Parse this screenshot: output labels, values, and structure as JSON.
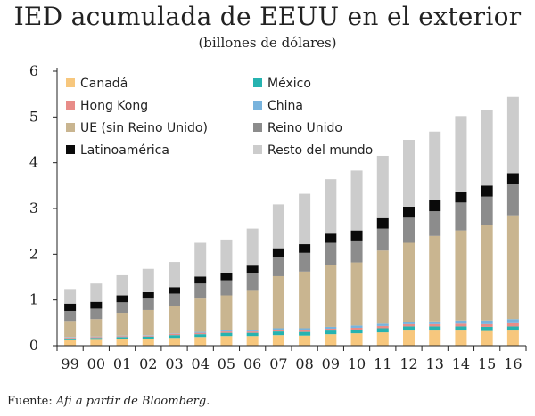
{
  "title": "IED acumulada de EEUU en el exterior",
  "subtitle": "(billones de dólares)",
  "source": {
    "prefix": "Fuente: ",
    "text": "Afi a partir de Bloomberg."
  },
  "chart_data": {
    "type": "bar",
    "stacked": true,
    "categories": [
      "99",
      "00",
      "01",
      "02",
      "03",
      "04",
      "05",
      "06",
      "07",
      "08",
      "09",
      "10",
      "11",
      "12",
      "13",
      "14",
      "15",
      "16"
    ],
    "ylim": [
      0,
      6
    ],
    "yticks": [
      0,
      1,
      2,
      3,
      4,
      5,
      6
    ],
    "grid": false,
    "legend_position": "top-left",
    "series": [
      {
        "name": "Canadá",
        "color": "#f7c77d",
        "values": [
          0.12,
          0.13,
          0.14,
          0.15,
          0.17,
          0.19,
          0.21,
          0.21,
          0.23,
          0.22,
          0.25,
          0.27,
          0.29,
          0.33,
          0.33,
          0.33,
          0.32,
          0.33
        ]
      },
      {
        "name": "México",
        "color": "#26b3b0",
        "values": [
          0.04,
          0.04,
          0.05,
          0.05,
          0.06,
          0.06,
          0.07,
          0.07,
          0.08,
          0.08,
          0.08,
          0.08,
          0.09,
          0.09,
          0.09,
          0.09,
          0.09,
          0.09
        ]
      },
      {
        "name": "Hong Kong",
        "color": "#e88c88",
        "values": [
          0.02,
          0.02,
          0.02,
          0.02,
          0.03,
          0.03,
          0.03,
          0.03,
          0.04,
          0.04,
          0.04,
          0.04,
          0.05,
          0.05,
          0.05,
          0.06,
          0.06,
          0.07
        ]
      },
      {
        "name": "China",
        "color": "#78b3dd",
        "values": [
          0.01,
          0.01,
          0.01,
          0.01,
          0.01,
          0.02,
          0.02,
          0.02,
          0.03,
          0.04,
          0.04,
          0.05,
          0.05,
          0.05,
          0.06,
          0.07,
          0.08,
          0.09
        ]
      },
      {
        "name": "UE (sin Reino Unido)",
        "color": "#c9b590",
        "values": [
          0.35,
          0.38,
          0.5,
          0.55,
          0.6,
          0.73,
          0.77,
          0.87,
          1.14,
          1.24,
          1.36,
          1.38,
          1.6,
          1.73,
          1.87,
          1.97,
          2.08,
          2.27
        ]
      },
      {
        "name": "Reino Unido",
        "color": "#8c8c8c",
        "values": [
          0.22,
          0.23,
          0.23,
          0.25,
          0.27,
          0.33,
          0.33,
          0.38,
          0.42,
          0.41,
          0.48,
          0.48,
          0.48,
          0.55,
          0.54,
          0.61,
          0.63,
          0.68
        ]
      },
      {
        "name": "Latinoamérica",
        "color": "#0a0a0a",
        "values": [
          0.16,
          0.15,
          0.15,
          0.14,
          0.14,
          0.15,
          0.16,
          0.17,
          0.19,
          0.19,
          0.2,
          0.22,
          0.23,
          0.24,
          0.24,
          0.24,
          0.24,
          0.24
        ]
      },
      {
        "name": "Resto del mundo",
        "color": "#cccccc",
        "values": [
          0.32,
          0.4,
          0.44,
          0.51,
          0.55,
          0.74,
          0.73,
          0.81,
          0.96,
          1.1,
          1.19,
          1.31,
          1.36,
          1.46,
          1.5,
          1.65,
          1.65,
          1.67
        ]
      }
    ]
  }
}
